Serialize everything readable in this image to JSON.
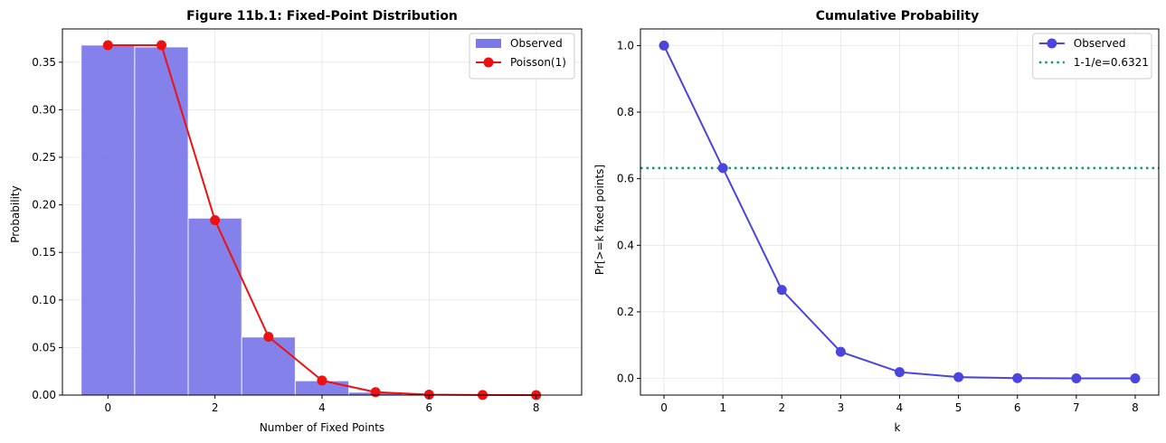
{
  "chart_data": [
    {
      "type": "bar",
      "title": "Figure 11b.1: Fixed-Point Distribution",
      "xlabel": "Number of Fixed Points",
      "ylabel": "Probability",
      "xlim": [
        -0.85,
        8.85
      ],
      "ylim": [
        0,
        0.385
      ],
      "xticks": [
        0,
        2,
        4,
        6,
        8
      ],
      "yticks": [
        0.0,
        0.05,
        0.1,
        0.15,
        0.2,
        0.25,
        0.3,
        0.35
      ],
      "ytick_labels": [
        "0.00",
        "0.05",
        "0.10",
        "0.15",
        "0.20",
        "0.25",
        "0.30",
        "0.35"
      ],
      "grid": true,
      "legend_position": "top-right",
      "series": [
        {
          "name": "Observed",
          "kind": "bar",
          "color": "#7b77e9",
          "x": [
            0,
            1,
            2,
            3,
            4,
            5,
            6,
            7,
            8
          ],
          "values": [
            0.368,
            0.366,
            0.186,
            0.061,
            0.015,
            0.003,
            0.0007,
            0.0002,
            0.0001
          ]
        },
        {
          "name": "Poisson(1)",
          "kind": "line",
          "color": "#ee1111",
          "x": [
            0,
            1,
            2,
            3,
            4,
            5,
            6,
            7,
            8
          ],
          "values": [
            0.3679,
            0.3679,
            0.1839,
            0.0613,
            0.0153,
            0.0031,
            0.0005,
            0.0001,
            1e-05
          ]
        }
      ]
    },
    {
      "type": "line",
      "title": "Cumulative Probability",
      "xlabel": "k",
      "ylabel": "Pr[>=k fixed points]",
      "xlim": [
        -0.4,
        8.4
      ],
      "ylim": [
        -0.05,
        1.05
      ],
      "xticks": [
        0,
        1,
        2,
        3,
        4,
        5,
        6,
        7,
        8
      ],
      "yticks": [
        0.0,
        0.2,
        0.4,
        0.6,
        0.8,
        1.0
      ],
      "ytick_labels": [
        "0.0",
        "0.2",
        "0.4",
        "0.6",
        "0.8",
        "1.0"
      ],
      "grid": true,
      "legend_position": "top-right",
      "series": [
        {
          "name": "Observed",
          "kind": "line",
          "color": "#4b44dd",
          "x": [
            0,
            1,
            2,
            3,
            4,
            5,
            6,
            7,
            8
          ],
          "values": [
            1.0,
            0.632,
            0.266,
            0.08,
            0.019,
            0.004,
            0.001,
            0.0003,
            0.0001
          ]
        }
      ],
      "reference_line": {
        "name": "1-1/e=0.6321",
        "value": 0.6321,
        "color": "#119966"
      }
    }
  ]
}
